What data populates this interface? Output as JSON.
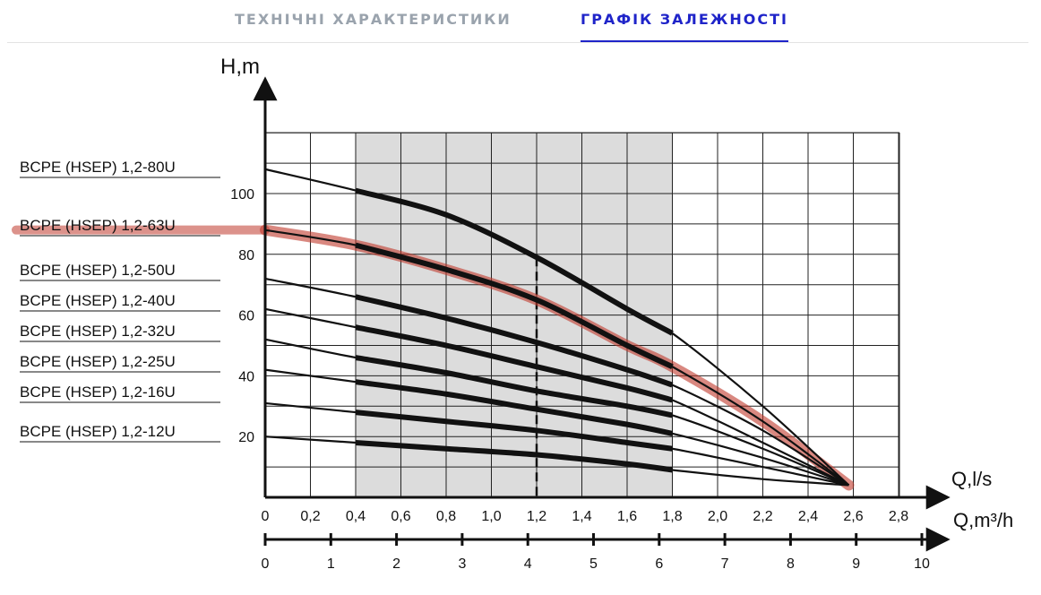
{
  "tabs": [
    {
      "label": "ТЕХНІЧНІ ХАРАКТЕРИСТИКИ",
      "active": false
    },
    {
      "label": "ГРАФІК ЗАЛЕЖНОСТІ",
      "active": true
    }
  ],
  "colors": {
    "active_tab": "#1f24c9",
    "inactive_tab": "#9aa3ad",
    "highlight": "#c0392b",
    "work_zone": "#dcdcdc"
  },
  "chart_data": {
    "type": "line",
    "ylabel": "H,m",
    "xlabel": "Q,l/s",
    "xlabel2": "Q,m³/h",
    "xlim": [
      0,
      3.0
    ],
    "ylim": [
      0,
      120
    ],
    "grid": true,
    "x_ticks": [
      "0",
      "0,2",
      "0,4",
      "0,6",
      "0,8",
      "1,0",
      "1,2",
      "1,4",
      "1,6",
      "1,8",
      "2,0",
      "2,2",
      "2,4",
      "2,6",
      "2,8"
    ],
    "x2_ticks": [
      "0",
      "1",
      "2",
      "3",
      "4",
      "5",
      "6",
      "7",
      "8",
      "9",
      "10"
    ],
    "x2_lim": [
      0,
      10.8
    ],
    "y_ticks": [
      "20",
      "40",
      "60",
      "80",
      "100"
    ],
    "working_range": [
      0.4,
      1.8
    ],
    "nominal_flow": 1.2,
    "highlighted_series": "BCPE (HSEP) 1,2-63U",
    "series": [
      {
        "name": "BCPE (HSEP) 1,2-80U",
        "x": [
          0,
          0.4,
          0.8,
          1.2,
          1.6,
          1.8,
          2.2,
          2.58
        ],
        "y": [
          108,
          101,
          93,
          79,
          62,
          54,
          30,
          4
        ]
      },
      {
        "name": "BCPE (HSEP) 1,2-63U",
        "x": [
          0,
          0.4,
          0.8,
          1.2,
          1.6,
          1.8,
          2.2,
          2.58
        ],
        "y": [
          88,
          83,
          75,
          65,
          50,
          43,
          25,
          4
        ]
      },
      {
        "name": "BCPE (HSEP) 1,2-50U",
        "x": [
          0,
          0.4,
          0.8,
          1.2,
          1.6,
          1.8,
          2.2,
          2.58
        ],
        "y": [
          72,
          66,
          59,
          51,
          42,
          37,
          22,
          4
        ]
      },
      {
        "name": "BCPE (HSEP) 1,2-40U",
        "x": [
          0,
          0.4,
          0.8,
          1.2,
          1.6,
          1.8,
          2.2,
          2.58
        ],
        "y": [
          62,
          56,
          50,
          43,
          36,
          32,
          18,
          4
        ]
      },
      {
        "name": "BCPE (HSEP) 1,2-32U",
        "x": [
          0,
          0.4,
          0.8,
          1.2,
          1.6,
          1.8,
          2.2,
          2.58
        ],
        "y": [
          52,
          46,
          41,
          35,
          30,
          27,
          16,
          4
        ]
      },
      {
        "name": "BCPE (HSEP) 1,2-25U",
        "x": [
          0,
          0.4,
          0.8,
          1.2,
          1.6,
          1.8,
          2.2,
          2.58
        ],
        "y": [
          42,
          38,
          34,
          29,
          24,
          21,
          13,
          4
        ]
      },
      {
        "name": "BCPE (HSEP) 1,2-16U",
        "x": [
          0,
          0.4,
          0.8,
          1.2,
          1.6,
          1.8,
          2.2,
          2.58
        ],
        "y": [
          31,
          28,
          25,
          22,
          18,
          16,
          10,
          4
        ]
      },
      {
        "name": "BCPE (HSEP) 1,2-12U",
        "x": [
          0,
          0.4,
          0.8,
          1.2,
          1.6,
          1.8,
          2.2,
          2.58
        ],
        "y": [
          20,
          18,
          16,
          14,
          11,
          9,
          6,
          4
        ]
      }
    ]
  }
}
